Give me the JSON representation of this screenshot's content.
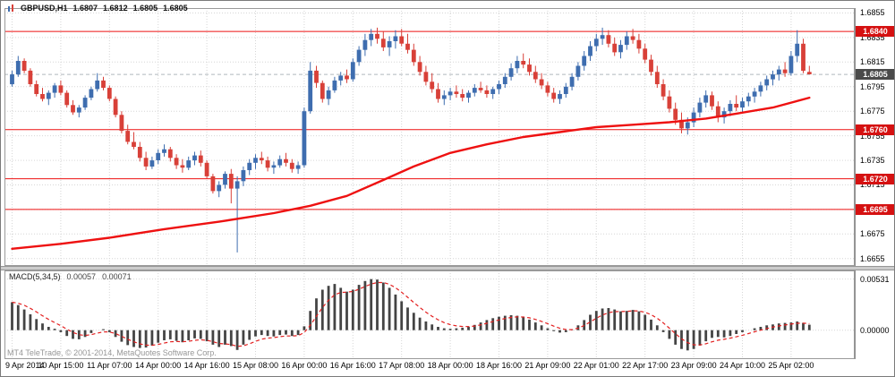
{
  "header": {
    "symbol": "GBPUSD,H1",
    "open": "1.6807",
    "high": "1.6812",
    "low": "1.6805",
    "close": "1.6805"
  },
  "macd": {
    "name": "MACD(5,34,5)",
    "value": "0.00057",
    "signal": "0.00071"
  },
  "footer": {
    "copyright": "MT4 TeleTrade, © 2001-2014, MetaQuotes Software Corp."
  },
  "colors": {
    "bull": "#3e6daf",
    "bear": "#d84038",
    "ma": "#ee1111",
    "level": "#ee1111",
    "badge": "#d51111",
    "bid_badge": "#4a4a4a",
    "grid": "#d6d6d6",
    "frame": "#9a9a9a",
    "hist": "#444444",
    "signal": "#e32020",
    "bid_line": "#b0b6bc",
    "axis_text": "#000000"
  },
  "chart_data": [
    {
      "type": "candlestick",
      "symbol": "GBPUSD",
      "timeframe": "H1",
      "title": "GBPUSD,H1",
      "ylim": [
        1.6649,
        1.6859
      ],
      "y_ticks": [
        1.6855,
        1.6835,
        1.6815,
        1.6795,
        1.6775,
        1.6755,
        1.6735,
        1.6715,
        1.6695,
        1.6675,
        1.6655
      ],
      "x_labels": [
        "9 Apr 2014",
        "10 Apr 15:00",
        "11 Apr 07:00",
        "14 Apr 00:00",
        "14 Apr 16:00",
        "15 Apr 08:00",
        "16 Apr 00:00",
        "16 Apr 16:00",
        "17 Apr 08:00",
        "18 Apr 00:00",
        "18 Apr 16:00",
        "21 Apr 09:00",
        "22 Apr 01:00",
        "22 Apr 17:00",
        "23 Apr 09:00",
        "24 Apr 10:00",
        "25 Apr 02:00"
      ],
      "label_step": 8,
      "hlines": [
        1.684,
        1.676,
        1.672,
        1.6695
      ],
      "bid": 1.6805,
      "grid": true,
      "candles": [
        [
          1.6797,
          1.6808,
          1.6795,
          1.6805
        ],
        [
          1.6805,
          1.682,
          1.6803,
          1.6816
        ],
        [
          1.6816,
          1.6818,
          1.6806,
          1.6808
        ],
        [
          1.6808,
          1.681,
          1.6795,
          1.6797
        ],
        [
          1.6797,
          1.68,
          1.6787,
          1.6789
        ],
        [
          1.6789,
          1.6794,
          1.6783,
          1.6785
        ],
        [
          1.6785,
          1.6792,
          1.678,
          1.679
        ],
        [
          1.679,
          1.6798,
          1.6786,
          1.6796
        ],
        [
          1.6796,
          1.68,
          1.6788,
          1.679
        ],
        [
          1.679,
          1.6792,
          1.6778,
          1.678
        ],
        [
          1.678,
          1.6784,
          1.6772,
          1.6774
        ],
        [
          1.6774,
          1.678,
          1.677,
          1.6778
        ],
        [
          1.6778,
          1.6788,
          1.6776,
          1.6786
        ],
        [
          1.6786,
          1.6795,
          1.6784,
          1.6793
        ],
        [
          1.6793,
          1.6806,
          1.6791,
          1.68
        ],
        [
          1.68,
          1.6803,
          1.6792,
          1.6794
        ],
        [
          1.6794,
          1.6796,
          1.6783,
          1.6785
        ],
        [
          1.6785,
          1.6787,
          1.677,
          1.6772
        ],
        [
          1.6772,
          1.6775,
          1.6757,
          1.6759
        ],
        [
          1.6759,
          1.6764,
          1.6748,
          1.675
        ],
        [
          1.675,
          1.6758,
          1.6744,
          1.6746
        ],
        [
          1.6746,
          1.675,
          1.6734,
          1.6737
        ],
        [
          1.6737,
          1.6742,
          1.6727,
          1.673
        ],
        [
          1.673,
          1.6738,
          1.6728,
          1.6735
        ],
        [
          1.6735,
          1.6744,
          1.6732,
          1.6741
        ],
        [
          1.6741,
          1.6748,
          1.6738,
          1.6744
        ],
        [
          1.6744,
          1.6746,
          1.6734,
          1.6737
        ],
        [
          1.6737,
          1.674,
          1.6728,
          1.6731
        ],
        [
          1.6731,
          1.6736,
          1.6725,
          1.6729
        ],
        [
          1.6729,
          1.6738,
          1.6727,
          1.6735
        ],
        [
          1.6735,
          1.6742,
          1.6731,
          1.6739
        ],
        [
          1.6739,
          1.6743,
          1.673,
          1.6733
        ],
        [
          1.6733,
          1.6735,
          1.672,
          1.6722
        ],
        [
          1.6722,
          1.6724,
          1.6708,
          1.671
        ],
        [
          1.671,
          1.6718,
          1.6705,
          1.6715
        ],
        [
          1.6715,
          1.6726,
          1.6712,
          1.6724
        ],
        [
          1.6724,
          1.6728,
          1.67,
          1.6712
        ],
        [
          1.6712,
          1.6722,
          1.666,
          1.6718
        ],
        [
          1.6718,
          1.673,
          1.6714,
          1.6727
        ],
        [
          1.6727,
          1.6736,
          1.6723,
          1.6733
        ],
        [
          1.6733,
          1.674,
          1.6728,
          1.6737
        ],
        [
          1.6737,
          1.6742,
          1.6732,
          1.6735
        ],
        [
          1.6735,
          1.6738,
          1.6726,
          1.6729
        ],
        [
          1.6729,
          1.6734,
          1.6724,
          1.6731
        ],
        [
          1.6731,
          1.6739,
          1.6729,
          1.6736
        ],
        [
          1.6736,
          1.6741,
          1.673,
          1.6733
        ],
        [
          1.6733,
          1.6736,
          1.6725,
          1.6728
        ],
        [
          1.6728,
          1.6734,
          1.6724,
          1.6731
        ],
        [
          1.6731,
          1.6778,
          1.6729,
          1.6775
        ],
        [
          1.6775,
          1.6815,
          1.6773,
          1.6808
        ],
        [
          1.6808,
          1.6812,
          1.6794,
          1.6798
        ],
        [
          1.6798,
          1.68,
          1.6782,
          1.6785
        ],
        [
          1.6785,
          1.6795,
          1.678,
          1.6792
        ],
        [
          1.6792,
          1.6803,
          1.679,
          1.68
        ],
        [
          1.68,
          1.6807,
          1.6796,
          1.6804
        ],
        [
          1.6804,
          1.6809,
          1.6798,
          1.6801
        ],
        [
          1.6801,
          1.6818,
          1.6799,
          1.6815
        ],
        [
          1.6815,
          1.6828,
          1.6812,
          1.6825
        ],
        [
          1.6825,
          1.6838,
          1.682,
          1.6833
        ],
        [
          1.6833,
          1.6842,
          1.6828,
          1.6838
        ],
        [
          1.6838,
          1.6843,
          1.683,
          1.6834
        ],
        [
          1.6834,
          1.684,
          1.6824,
          1.6827
        ],
        [
          1.6827,
          1.6836,
          1.682,
          1.6832
        ],
        [
          1.6832,
          1.6841,
          1.6826,
          1.6836
        ],
        [
          1.6836,
          1.6842,
          1.6828,
          1.683
        ],
        [
          1.683,
          1.6838,
          1.6822,
          1.6825
        ],
        [
          1.6825,
          1.683,
          1.6812,
          1.6815
        ],
        [
          1.6815,
          1.682,
          1.6804,
          1.6807
        ],
        [
          1.6807,
          1.6812,
          1.6796,
          1.6799
        ],
        [
          1.6799,
          1.6806,
          1.679,
          1.6793
        ],
        [
          1.6793,
          1.6798,
          1.6782,
          1.6785
        ],
        [
          1.6785,
          1.6792,
          1.678,
          1.6788
        ],
        [
          1.6788,
          1.6794,
          1.6784,
          1.6791
        ],
        [
          1.6791,
          1.6796,
          1.6786,
          1.6789
        ],
        [
          1.6789,
          1.6793,
          1.6783,
          1.6786
        ],
        [
          1.6786,
          1.6792,
          1.6782,
          1.679
        ],
        [
          1.679,
          1.6797,
          1.6787,
          1.6794
        ],
        [
          1.6794,
          1.6799,
          1.679,
          1.6792
        ],
        [
          1.6792,
          1.6796,
          1.6786,
          1.6789
        ],
        [
          1.6789,
          1.6795,
          1.6785,
          1.6793
        ],
        [
          1.6793,
          1.68,
          1.6789,
          1.6797
        ],
        [
          1.6797,
          1.6806,
          1.6794,
          1.6803
        ],
        [
          1.6803,
          1.6814,
          1.68,
          1.681
        ],
        [
          1.681,
          1.682,
          1.6806,
          1.6816
        ],
        [
          1.6816,
          1.6822,
          1.681,
          1.6813
        ],
        [
          1.6813,
          1.6818,
          1.6804,
          1.6807
        ],
        [
          1.6807,
          1.6812,
          1.6798,
          1.6801
        ],
        [
          1.6801,
          1.6806,
          1.6793,
          1.6796
        ],
        [
          1.6796,
          1.6799,
          1.6787,
          1.679
        ],
        [
          1.679,
          1.6794,
          1.6782,
          1.6785
        ],
        [
          1.6785,
          1.6792,
          1.6781,
          1.6789
        ],
        [
          1.6789,
          1.6798,
          1.6786,
          1.6795
        ],
        [
          1.6795,
          1.6806,
          1.6792,
          1.6803
        ],
        [
          1.6803,
          1.6815,
          1.68,
          1.6812
        ],
        [
          1.6812,
          1.6824,
          1.6808,
          1.682
        ],
        [
          1.682,
          1.6832,
          1.6816,
          1.6828
        ],
        [
          1.6828,
          1.6838,
          1.6824,
          1.6834
        ],
        [
          1.6834,
          1.6843,
          1.6829,
          1.6837
        ],
        [
          1.6837,
          1.6841,
          1.6827,
          1.683
        ],
        [
          1.683,
          1.6835,
          1.682,
          1.6823
        ],
        [
          1.6823,
          1.6833,
          1.6818,
          1.6829
        ],
        [
          1.6829,
          1.684,
          1.6825,
          1.6836
        ],
        [
          1.6836,
          1.6842,
          1.683,
          1.6833
        ],
        [
          1.6833,
          1.6838,
          1.6822,
          1.6826
        ],
        [
          1.6826,
          1.683,
          1.6814,
          1.6817
        ],
        [
          1.6817,
          1.6821,
          1.6804,
          1.6807
        ],
        [
          1.6807,
          1.6812,
          1.6794,
          1.6797
        ],
        [
          1.6797,
          1.6801,
          1.6784,
          1.6787
        ],
        [
          1.6787,
          1.6792,
          1.6774,
          1.6777
        ],
        [
          1.6777,
          1.6782,
          1.6764,
          1.6768
        ],
        [
          1.6768,
          1.6774,
          1.6757,
          1.6761
        ],
        [
          1.6761,
          1.677,
          1.6756,
          1.6766
        ],
        [
          1.6766,
          1.6778,
          1.6762,
          1.6774
        ],
        [
          1.6774,
          1.6786,
          1.677,
          1.6782
        ],
        [
          1.6782,
          1.6792,
          1.6778,
          1.6788
        ],
        [
          1.6788,
          1.6791,
          1.6776,
          1.6779
        ],
        [
          1.6779,
          1.6783,
          1.6766,
          1.677
        ],
        [
          1.677,
          1.6778,
          1.6765,
          1.6775
        ],
        [
          1.6775,
          1.6784,
          1.6771,
          1.6781
        ],
        [
          1.6781,
          1.6788,
          1.6775,
          1.6778
        ],
        [
          1.6778,
          1.6786,
          1.6774,
          1.6783
        ],
        [
          1.6783,
          1.679,
          1.6779,
          1.6787
        ],
        [
          1.6787,
          1.6794,
          1.6782,
          1.6791
        ],
        [
          1.6791,
          1.6799,
          1.6787,
          1.6796
        ],
        [
          1.6796,
          1.6804,
          1.6792,
          1.6801
        ],
        [
          1.6801,
          1.6808,
          1.6796,
          1.6805
        ],
        [
          1.6805,
          1.6812,
          1.68,
          1.6809
        ],
        [
          1.6809,
          1.6815,
          1.6803,
          1.6806
        ],
        [
          1.6806,
          1.6824,
          1.6804,
          1.682
        ],
        [
          1.682,
          1.6841,
          1.6815,
          1.683
        ],
        [
          1.683,
          1.6834,
          1.6806,
          1.6808
        ],
        [
          1.6807,
          1.6812,
          1.6805,
          1.6805
        ]
      ],
      "ma": {
        "name": "moving-average",
        "points": [
          [
            0,
            1.6663
          ],
          [
            8,
            1.6667
          ],
          [
            16,
            1.6672
          ],
          [
            25,
            1.6679
          ],
          [
            34,
            1.6685
          ],
          [
            43,
            1.6692
          ],
          [
            49,
            1.6698
          ],
          [
            55,
            1.6706
          ],
          [
            61,
            1.6719
          ],
          [
            66,
            1.673
          ],
          [
            72,
            1.6741
          ],
          [
            78,
            1.6748
          ],
          [
            84,
            1.6754
          ],
          [
            90,
            1.6758
          ],
          [
            96,
            1.6762
          ],
          [
            102,
            1.6764
          ],
          [
            108,
            1.6766
          ],
          [
            114,
            1.6769
          ],
          [
            119,
            1.6773
          ],
          [
            125,
            1.6778
          ],
          [
            131,
            1.6786
          ]
        ]
      }
    },
    {
      "type": "bar",
      "name": "MACD(5,34,5)",
      "ylim": [
        -0.003,
        0.0062
      ],
      "y_ticks": [
        0.00531,
        0
      ],
      "last_value": 0.00057,
      "last_signal": 0.00071,
      "values": [
        0.0029,
        0.0026,
        0.00215,
        0.00165,
        0.00115,
        0.0007,
        0.00035,
        0.00015,
        -0.0002,
        -0.0006,
        -0.0009,
        -0.00095,
        -0.0007,
        -0.0003,
        0,
        0.0001,
        -0.0002,
        -0.0007,
        -0.0012,
        -0.00155,
        -0.00175,
        -0.00185,
        -0.0018,
        -0.0016,
        -0.0013,
        -0.00105,
        -0.00095,
        -0.0011,
        -0.00125,
        -0.00105,
        -0.00085,
        -0.0009,
        -0.00115,
        -0.0015,
        -0.00175,
        -0.0015,
        -0.00165,
        -0.00205,
        -0.0015,
        -0.001,
        -0.00065,
        -0.0005,
        -0.0006,
        -0.00065,
        -0.0005,
        -0.00045,
        -0.0006,
        -0.0005,
        0.0004,
        0.002,
        0.0033,
        0.0042,
        0.0046,
        0.0048,
        0.0044,
        0.004,
        0.0042,
        0.0047,
        0.0051,
        0.0053,
        0.00525,
        0.00495,
        0.0044,
        0.0037,
        0.003,
        0.00235,
        0.0018,
        0.0013,
        0.0009,
        0.0006,
        0.00035,
        0.0002,
        0.00015,
        0.0002,
        0.00025,
        0.00035,
        0.00055,
        0.0008,
        0.00105,
        0.00125,
        0.0014,
        0.0015,
        0.00155,
        0.0015,
        0.00135,
        0.0011,
        0.0008,
        0.0005,
        0.0002,
        -0.0001,
        -0.00025,
        -0.0002,
        5e-05,
        0.0005,
        0.00105,
        0.0016,
        0.002,
        0.00225,
        0.0023,
        0.00215,
        0.00195,
        0.002,
        0.0021,
        0.00195,
        0.0016,
        0.0011,
        0.0005,
        -0.0002,
        -0.0009,
        -0.0015,
        -0.00195,
        -0.0021,
        -0.00195,
        -0.0016,
        -0.00115,
        -0.0008,
        -0.0007,
        -0.00075,
        -0.0006,
        -0.0004,
        -0.0002,
        0,
        0.0002,
        0.00035,
        0.0005,
        0.0006,
        0.0007,
        0.00075,
        0.0008,
        0.0009,
        0.00075,
        0.00057
      ]
    }
  ]
}
